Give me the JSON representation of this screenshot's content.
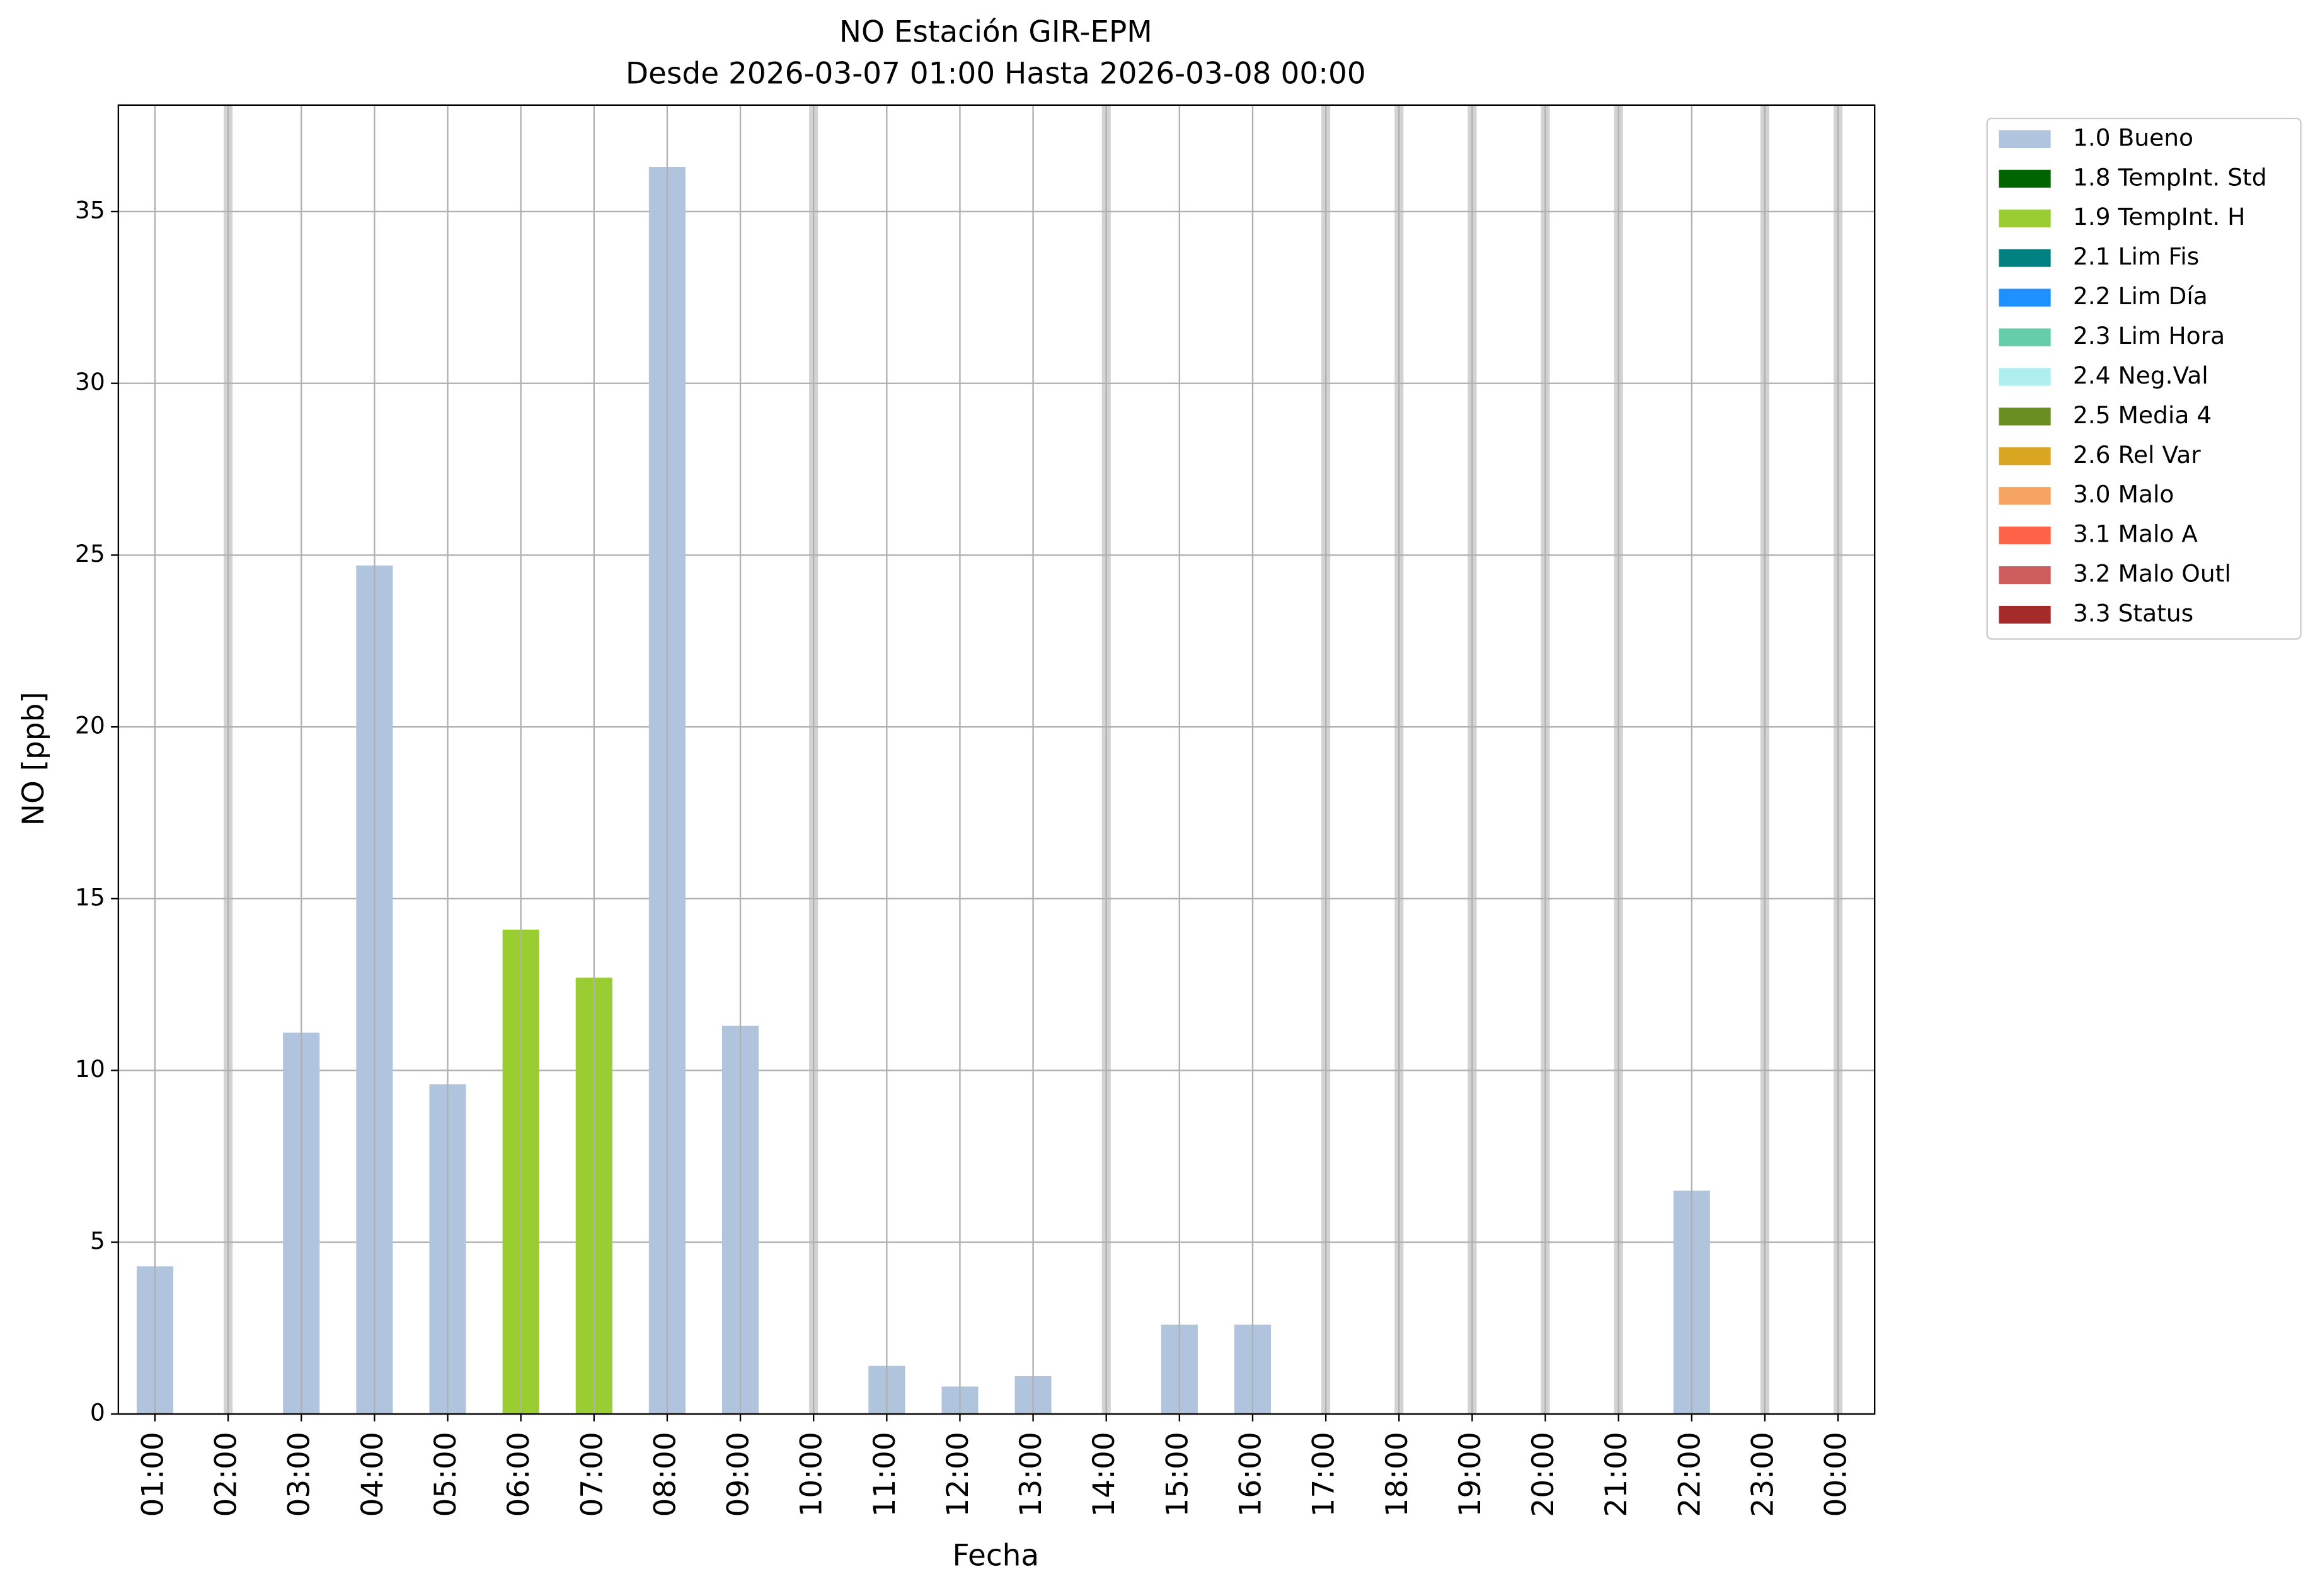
{
  "chart_data": {
    "type": "bar",
    "stacked": true,
    "title": "NO Estación GIR-EPM",
    "subtitle": "Desde 2026-03-07 01:00 Hasta 2026-03-08 00:00",
    "x_label": "Fecha",
    "y_label": "NO [ppb]",
    "categories": [
      "01:00",
      "02:00",
      "03:00",
      "04:00",
      "05:00",
      "06:00",
      "07:00",
      "08:00",
      "09:00",
      "10:00",
      "11:00",
      "12:00",
      "13:00",
      "14:00",
      "15:00",
      "16:00",
      "17:00",
      "18:00",
      "19:00",
      "20:00",
      "21:00",
      "22:00",
      "23:00",
      "00:00"
    ],
    "series": [
      {
        "name": "1.0 Bueno",
        "color": "#b0c4de",
        "values": [
          4.3,
          null,
          11.1,
          24.7,
          9.6,
          null,
          null,
          36.3,
          11.3,
          null,
          1.4,
          0.8,
          1.1,
          null,
          2.6,
          2.6,
          null,
          null,
          null,
          null,
          null,
          6.5,
          null,
          null
        ]
      },
      {
        "name": "1.8 TempInt. Std",
        "color": "#006400",
        "values": [
          null,
          null,
          null,
          null,
          null,
          null,
          null,
          null,
          null,
          null,
          null,
          null,
          null,
          null,
          null,
          null,
          null,
          null,
          null,
          null,
          null,
          null,
          null,
          null
        ]
      },
      {
        "name": "1.9 TempInt. H",
        "color": "#9acd32",
        "values": [
          null,
          null,
          null,
          null,
          null,
          14.1,
          12.7,
          null,
          null,
          null,
          null,
          null,
          null,
          null,
          null,
          null,
          null,
          null,
          null,
          null,
          null,
          null,
          null,
          null
        ]
      },
      {
        "name": "2.1 Lim Fis",
        "color": "#008080",
        "values": [
          null,
          null,
          null,
          null,
          null,
          null,
          null,
          null,
          null,
          null,
          null,
          null,
          null,
          null,
          null,
          null,
          null,
          null,
          null,
          null,
          null,
          null,
          null,
          null
        ]
      },
      {
        "name": "2.2 Lim Día",
        "color": "#1e90ff",
        "values": [
          null,
          null,
          null,
          null,
          null,
          null,
          null,
          null,
          null,
          null,
          null,
          null,
          null,
          null,
          null,
          null,
          null,
          null,
          null,
          null,
          null,
          null,
          null,
          null
        ]
      },
      {
        "name": "2.3 Lim Hora",
        "color": "#66cdaa",
        "values": [
          null,
          null,
          null,
          null,
          null,
          null,
          null,
          null,
          null,
          null,
          null,
          null,
          null,
          null,
          null,
          null,
          null,
          null,
          null,
          null,
          null,
          null,
          null,
          null
        ]
      },
      {
        "name": "2.4 Neg.Val",
        "color": "#afeeee",
        "values": [
          null,
          null,
          null,
          null,
          null,
          null,
          null,
          null,
          null,
          null,
          null,
          null,
          null,
          null,
          null,
          null,
          null,
          null,
          null,
          null,
          null,
          null,
          null,
          null
        ]
      },
      {
        "name": "2.5 Media 4",
        "color": "#6b8e23",
        "values": [
          null,
          null,
          null,
          null,
          null,
          null,
          null,
          null,
          null,
          null,
          null,
          null,
          null,
          null,
          null,
          null,
          null,
          null,
          null,
          null,
          null,
          null,
          null,
          null
        ]
      },
      {
        "name": "2.6 Rel Var",
        "color": "#daa520",
        "values": [
          null,
          null,
          null,
          null,
          null,
          null,
          null,
          null,
          null,
          null,
          null,
          null,
          null,
          null,
          null,
          null,
          null,
          null,
          null,
          null,
          null,
          null,
          null,
          null
        ]
      },
      {
        "name": "3.0 Malo",
        "color": "#f4a460",
        "values": [
          null,
          null,
          null,
          null,
          null,
          null,
          null,
          null,
          null,
          null,
          null,
          null,
          null,
          null,
          null,
          null,
          null,
          null,
          null,
          null,
          null,
          null,
          null,
          null
        ]
      },
      {
        "name": "3.1 Malo A",
        "color": "#ff6347",
        "values": [
          null,
          null,
          null,
          null,
          null,
          null,
          null,
          null,
          null,
          null,
          null,
          null,
          null,
          null,
          null,
          null,
          null,
          null,
          null,
          null,
          null,
          null,
          null,
          null
        ]
      },
      {
        "name": "3.2 Malo Outl",
        "color": "#cd5c5c",
        "values": [
          null,
          null,
          null,
          null,
          null,
          null,
          null,
          null,
          null,
          null,
          null,
          null,
          null,
          null,
          null,
          null,
          null,
          null,
          null,
          null,
          null,
          null,
          null,
          null
        ]
      },
      {
        "name": "3.3 Status",
        "color": "#a52a2a",
        "values": [
          null,
          null,
          null,
          null,
          null,
          null,
          null,
          null,
          null,
          null,
          null,
          null,
          null,
          null,
          null,
          null,
          null,
          null,
          null,
          null,
          null,
          null,
          null,
          null
        ]
      }
    ],
    "ylim": [
      0,
      38.1
    ],
    "yticks": [
      0,
      5,
      10,
      15,
      20,
      25,
      30,
      35
    ],
    "grid": true,
    "legend": "outside-upper-right"
  }
}
